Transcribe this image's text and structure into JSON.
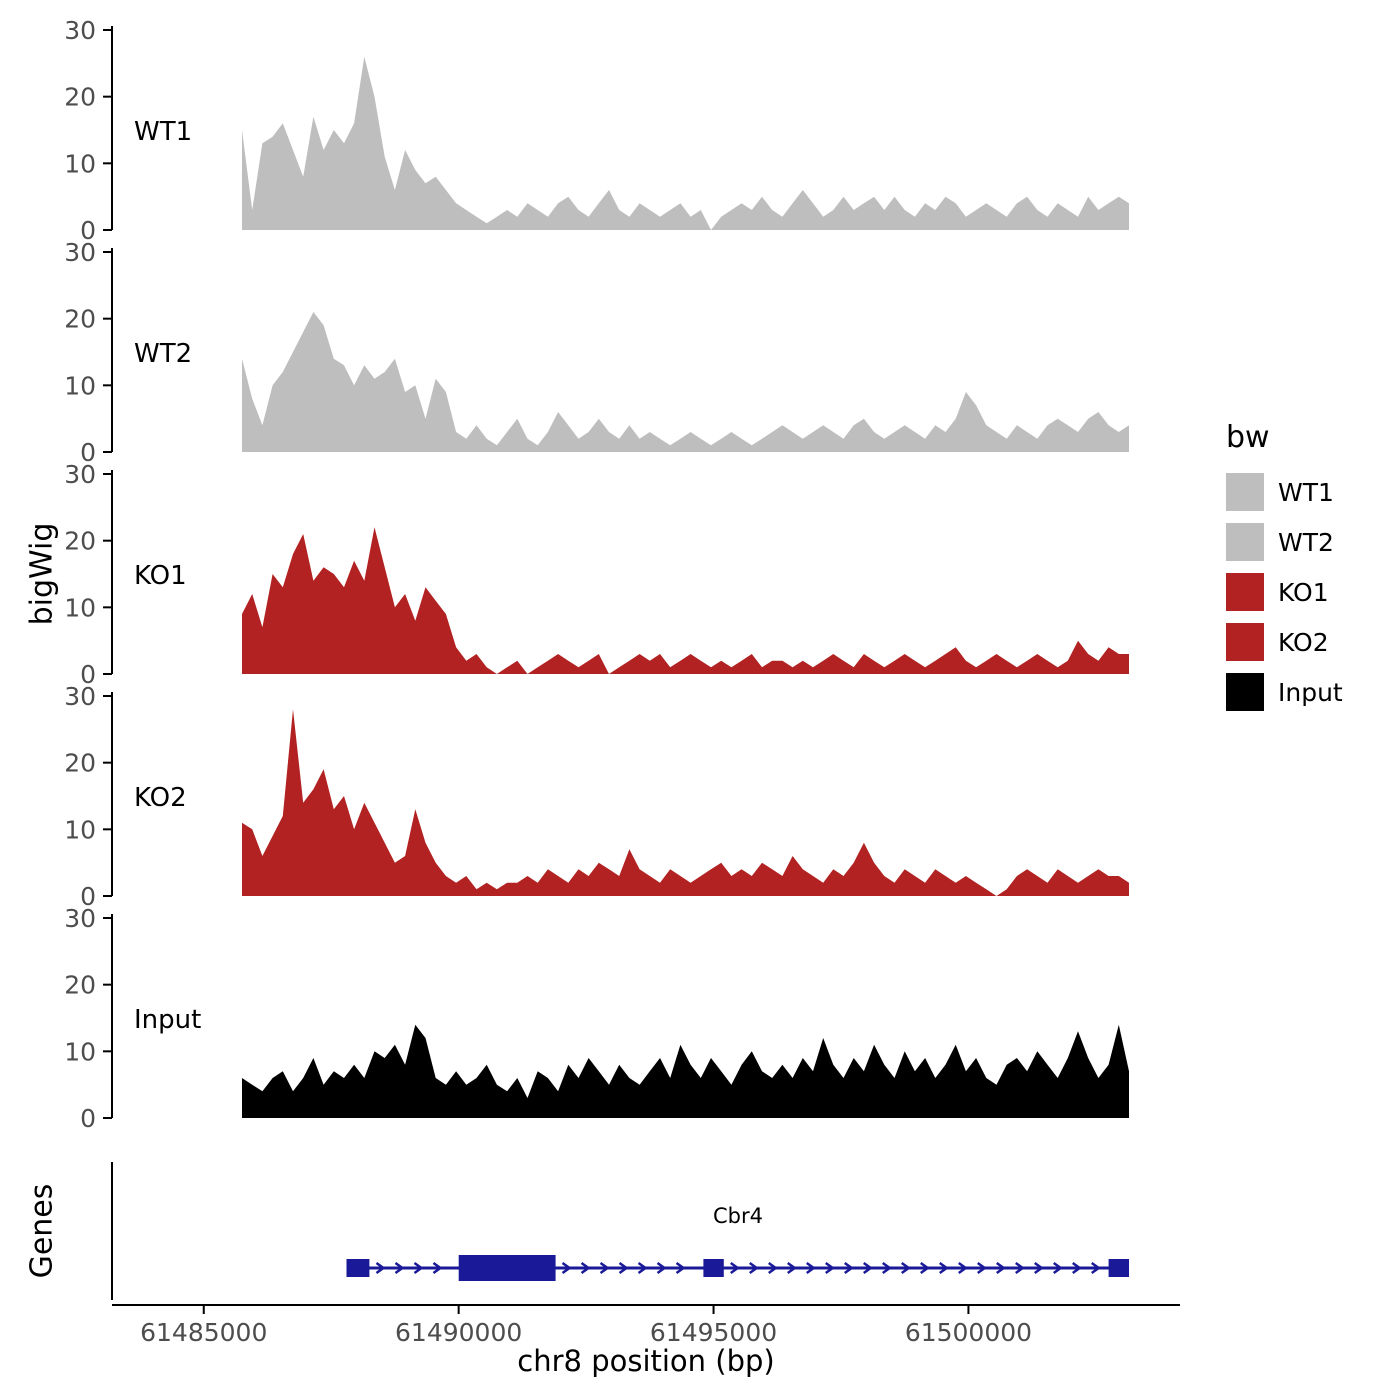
{
  "figure": {
    "y_axis_title": "bigWig",
    "genes_axis_title": "Genes",
    "x_axis_title": "chr8 position (bp)"
  },
  "legend": {
    "title": "bw",
    "entries": [
      {
        "label": "WT1",
        "color": "#bebebe"
      },
      {
        "label": "WT2",
        "color": "#bebebe"
      },
      {
        "label": "KO1",
        "color": "#b22222"
      },
      {
        "label": "KO2",
        "color": "#b22222"
      },
      {
        "label": "Input",
        "color": "#000000"
      }
    ]
  },
  "chart_data": {
    "type": "area",
    "title": "",
    "xlabel": "chr8 position (bp)",
    "ylabel": "bigWig",
    "ylim": [
      0,
      30
    ],
    "y_ticks": [
      0,
      10,
      20,
      30
    ],
    "x_domain": [
      61483200,
      61504150
    ],
    "x_ticks": [
      61485000,
      61490000,
      61495000,
      61500000
    ],
    "x_start": 61485750,
    "x_step": 200,
    "grid": false,
    "legend_position": "right",
    "series": [
      {
        "name": "WT1",
        "color": "#bebebe",
        "values": [
          15,
          3,
          13,
          14,
          16,
          12,
          8,
          17,
          12,
          15,
          13,
          16,
          26,
          20,
          11,
          6,
          12,
          9,
          7,
          8,
          6,
          4,
          3,
          2,
          1,
          2,
          3,
          2,
          4,
          3,
          2,
          4,
          5,
          3,
          2,
          4,
          6,
          3,
          2,
          4,
          3,
          2,
          3,
          4,
          2,
          3,
          0,
          2,
          3,
          4,
          3,
          5,
          3,
          2,
          4,
          6,
          4,
          2,
          3,
          5,
          3,
          4,
          5,
          3,
          5,
          3,
          2,
          4,
          3,
          5,
          4,
          2,
          3,
          4,
          3,
          2,
          4,
          5,
          3,
          2,
          4,
          3,
          2,
          5,
          3,
          4,
          5,
          4
        ]
      },
      {
        "name": "WT2",
        "color": "#bebebe",
        "values": [
          14,
          8,
          4,
          10,
          12,
          15,
          18,
          21,
          19,
          14,
          13,
          10,
          13,
          11,
          12,
          14,
          9,
          10,
          5,
          11,
          9,
          3,
          2,
          4,
          2,
          1,
          3,
          5,
          2,
          1,
          3,
          6,
          4,
          2,
          3,
          5,
          3,
          2,
          4,
          2,
          3,
          2,
          1,
          2,
          3,
          2,
          1,
          2,
          3,
          2,
          1,
          2,
          3,
          4,
          3,
          2,
          3,
          4,
          3,
          2,
          4,
          5,
          3,
          2,
          3,
          4,
          3,
          2,
          4,
          3,
          5,
          9,
          7,
          4,
          3,
          2,
          4,
          3,
          2,
          4,
          5,
          4,
          3,
          5,
          6,
          4,
          3,
          4
        ]
      },
      {
        "name": "KO1",
        "color": "#b22222",
        "values": [
          9,
          12,
          7,
          15,
          13,
          18,
          21,
          14,
          16,
          15,
          13,
          17,
          14,
          22,
          16,
          10,
          12,
          8,
          13,
          11,
          9,
          4,
          2,
          3,
          1,
          0,
          1,
          2,
          0,
          1,
          2,
          3,
          2,
          1,
          2,
          3,
          0,
          1,
          2,
          3,
          2,
          3,
          1,
          2,
          3,
          2,
          1,
          2,
          1,
          2,
          3,
          1,
          2,
          2,
          1,
          2,
          1,
          2,
          3,
          2,
          1,
          3,
          2,
          1,
          2,
          3,
          2,
          1,
          2,
          3,
          4,
          2,
          1,
          2,
          3,
          2,
          1,
          2,
          3,
          2,
          1,
          2,
          5,
          3,
          2,
          4,
          3,
          3
        ]
      },
      {
        "name": "KO2",
        "color": "#b22222",
        "values": [
          11,
          10,
          6,
          9,
          12,
          28,
          14,
          16,
          19,
          13,
          15,
          10,
          14,
          11,
          8,
          5,
          6,
          13,
          8,
          5,
          3,
          2,
          3,
          1,
          2,
          1,
          2,
          2,
          3,
          2,
          4,
          3,
          2,
          4,
          3,
          5,
          4,
          3,
          7,
          4,
          3,
          2,
          4,
          3,
          2,
          3,
          4,
          5,
          3,
          4,
          3,
          5,
          4,
          3,
          6,
          4,
          3,
          2,
          4,
          3,
          5,
          8,
          5,
          3,
          2,
          4,
          3,
          2,
          4,
          3,
          2,
          3,
          2,
          1,
          0,
          1,
          3,
          4,
          3,
          2,
          4,
          3,
          2,
          3,
          4,
          3,
          3,
          2
        ]
      },
      {
        "name": "Input",
        "color": "#000000",
        "values": [
          6,
          5,
          4,
          6,
          7,
          4,
          6,
          9,
          5,
          7,
          6,
          8,
          6,
          10,
          9,
          11,
          8,
          14,
          12,
          6,
          5,
          7,
          5,
          6,
          8,
          5,
          4,
          6,
          3,
          7,
          6,
          4,
          8,
          6,
          9,
          7,
          5,
          8,
          6,
          5,
          7,
          9,
          6,
          11,
          8,
          6,
          9,
          7,
          5,
          8,
          10,
          7,
          6,
          8,
          6,
          9,
          7,
          12,
          8,
          6,
          9,
          7,
          11,
          8,
          6,
          10,
          7,
          9,
          6,
          8,
          11,
          7,
          9,
          6,
          5,
          8,
          9,
          7,
          10,
          8,
          6,
          9,
          13,
          9,
          6,
          8,
          14,
          7
        ]
      }
    ],
    "gene": {
      "name": "Cbr4",
      "chromosome": "chr8",
      "start": 61487800,
      "end": 61503150,
      "strand": "+",
      "color": "#1a1a99",
      "exons": [
        [
          61487800,
          61488250
        ],
        [
          61490000,
          61491900
        ],
        [
          61494800,
          61495200
        ],
        [
          61502750,
          61503150
        ]
      ]
    }
  }
}
